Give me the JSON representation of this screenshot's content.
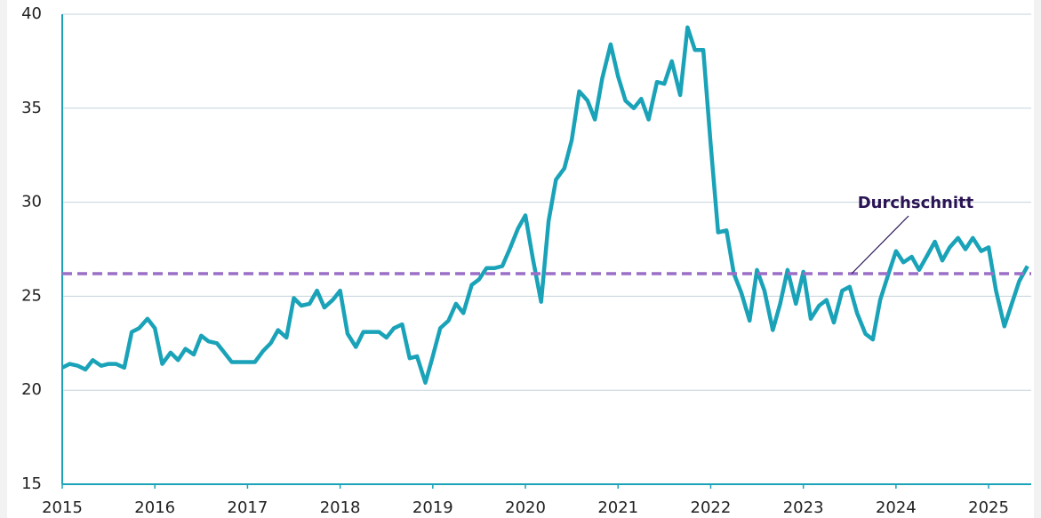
{
  "chart_data": {
    "type": "line",
    "x": [
      2015,
      2015.08,
      2015.17,
      2015.25,
      2015.33,
      2015.42,
      2015.5,
      2015.58,
      2015.67,
      2015.75,
      2015.83,
      2015.92,
      2016,
      2016.08,
      2016.17,
      2016.25,
      2016.33,
      2016.42,
      2016.5,
      2016.58,
      2016.67,
      2016.75,
      2016.83,
      2016.92,
      2017,
      2017.08,
      2017.17,
      2017.25,
      2017.33,
      2017.42,
      2017.5,
      2017.58,
      2017.67,
      2017.75,
      2017.83,
      2017.92,
      2018,
      2018.08,
      2018.17,
      2018.25,
      2018.33,
      2018.42,
      2018.5,
      2018.58,
      2018.67,
      2018.75,
      2018.83,
      2018.92,
      2019,
      2019.08,
      2019.17,
      2019.25,
      2019.33,
      2019.42,
      2019.5,
      2019.58,
      2019.67,
      2019.75,
      2019.83,
      2019.92,
      2020,
      2020.08,
      2020.17,
      2020.25,
      2020.33,
      2020.42,
      2020.5,
      2020.58,
      2020.67,
      2020.75,
      2020.83,
      2020.92,
      2021,
      2021.08,
      2021.17,
      2021.25,
      2021.33,
      2021.42,
      2021.5,
      2021.58,
      2021.67,
      2021.75,
      2021.83,
      2021.92,
      2022,
      2022.08,
      2022.17,
      2022.25,
      2022.33,
      2022.42,
      2022.5,
      2022.58,
      2022.67,
      2022.75,
      2022.83,
      2022.92,
      2023,
      2023.08,
      2023.17,
      2023.25,
      2023.33,
      2023.42,
      2023.5,
      2023.58,
      2023.67,
      2023.75,
      2023.83,
      2023.92,
      2024,
      2024.08,
      2024.17,
      2024.25,
      2024.33,
      2024.42,
      2024.5,
      2024.58,
      2024.67,
      2024.75,
      2024.83,
      2024.92,
      2025,
      2025.08,
      2025.17,
      2025.25,
      2025.33,
      2025.42
    ],
    "series": [
      {
        "color": "#1aa3b8",
        "values": [
          21.2,
          21.4,
          21.3,
          21.1,
          21.6,
          21.3,
          21.4,
          21.4,
          21.2,
          23.1,
          23.3,
          23.8,
          23.3,
          21.4,
          22.0,
          21.6,
          22.2,
          21.9,
          22.9,
          22.6,
          22.5,
          22.0,
          21.5,
          21.5,
          21.5,
          21.5,
          22.1,
          22.5,
          23.2,
          22.8,
          24.9,
          24.5,
          24.6,
          25.3,
          24.4,
          24.8,
          25.3,
          23.0,
          22.3,
          23.1,
          23.1,
          23.1,
          22.8,
          23.3,
          23.5,
          21.7,
          21.8,
          20.4,
          21.8,
          23.3,
          23.7,
          24.6,
          24.1,
          25.6,
          25.9,
          26.5,
          26.5,
          26.6,
          27.5,
          28.6,
          29.3,
          27.0,
          24.7,
          29.0,
          31.2,
          31.8,
          33.3,
          35.9,
          35.4,
          34.4,
          36.6,
          38.4,
          36.7,
          35.4,
          35.0,
          35.5,
          34.4,
          36.4,
          36.3,
          37.5,
          35.7,
          39.3,
          38.1,
          38.1,
          33.1,
          28.4,
          28.5,
          26.2,
          25.2,
          23.7,
          26.4,
          25.3,
          23.2,
          24.6,
          26.4,
          24.6,
          26.3,
          23.8,
          24.5,
          24.8,
          23.6,
          25.3,
          25.5,
          24.1,
          23.0,
          22.7,
          24.8,
          26.2,
          27.4,
          26.8,
          27.1,
          26.4,
          27.1,
          27.9,
          26.9,
          27.6,
          28.1,
          27.5,
          28.1,
          27.4,
          27.6,
          25.3,
          23.4,
          24.6,
          25.8,
          26.6
        ]
      }
    ],
    "xlim": [
      2015,
      2025.46
    ],
    "xticks": [
      2015,
      2016,
      2017,
      2018,
      2019,
      2020,
      2021,
      2022,
      2023,
      2024,
      2025
    ],
    "ylim": [
      15,
      40
    ],
    "yticks": [
      15,
      20,
      25,
      30,
      35,
      40
    ],
    "grid": true,
    "reference_line": {
      "label": "Durchschnitt",
      "value": 26.2,
      "color": "#9b6fc7"
    }
  }
}
